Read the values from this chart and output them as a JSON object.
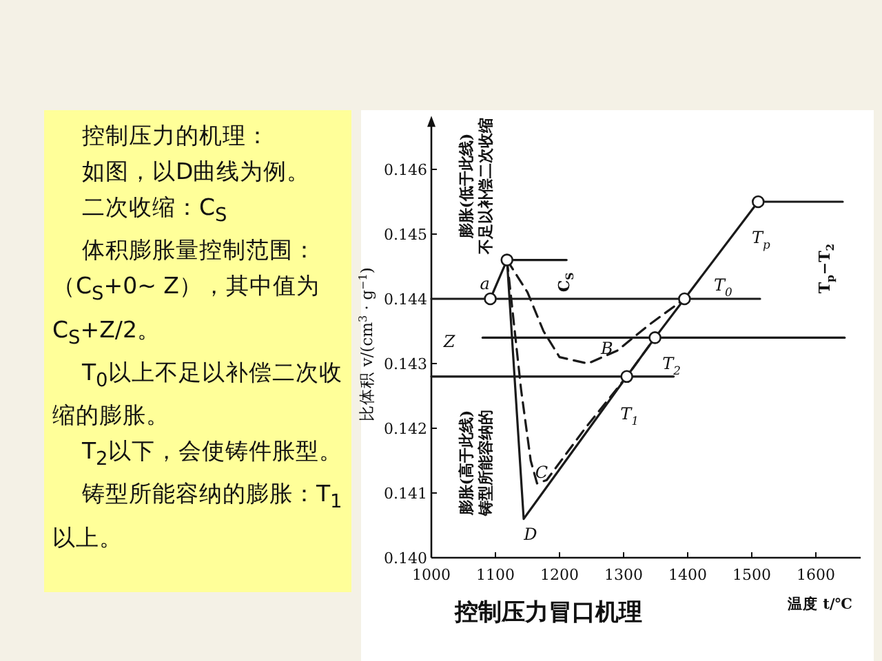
{
  "chart_data": [
    {
      "type": "other",
      "title": "控制压力的机理：",
      "annotations": [
        "如图，以D曲线为例。",
        "二次收缩：C$_{S}$",
        "体积膨胀量控制范围：（C$_{S}$+0~ Z），其中值为C$_{S}$+Z/2。",
        "T$_{0}$以上不足以补偿二次收缩的膨胀。",
        "T$_{2}$以下，会使铸件胀型。",
        "铸型所能容纳的膨胀：T$_{1}$以上。"
      ]
    },
    {
      "type": "line",
      "title": "控制压力冒口机理",
      "xlabel": "温度 t/℃",
      "ylabel": "比体积 v/(cm$^{3}$ · g$^{−1}$)",
      "xlim": [
        1000,
        1670
      ],
      "ylim": [
        0.14,
        0.1467
      ],
      "xticks": [
        1000,
        1100,
        1200,
        1300,
        1400,
        1500,
        1600
      ],
      "yticks": [
        {
          "value": 0.14,
          "label": "0.140"
        },
        0.141,
        0.142,
        0.143,
        0.144,
        0.145,
        0.146
      ],
      "grid": false,
      "series": [
        {
          "color": "#1a1a1a",
          "line_style": "solid",
          "marker": "none",
          "x": [
            1092,
            1118,
            1144,
            1305,
            1349,
            1395,
            1510,
            1642
          ],
          "values": [
            0.144,
            0.1446,
            0.1406,
            0.1428,
            0.1434,
            0.144,
            0.1455,
            0.1455
          ]
        },
        {
          "color": "#1a1a1a",
          "line_style": "dashed",
          "marker": "none",
          "x": [
            1118,
            1140,
            1155,
            1165,
            1180,
            1240,
            1305,
            1349
          ],
          "values": [
            0.1446,
            0.1426,
            0.1415,
            0.14115,
            0.1412,
            0.142,
            0.1428,
            0.1434
          ]
        },
        {
          "color": "#1a1a1a",
          "line_style": "dashed",
          "marker": "none",
          "x": [
            1118,
            1150,
            1175,
            1200,
            1244,
            1290,
            1340,
            1395
          ],
          "values": [
            0.1446,
            0.1441,
            0.1435,
            0.1431,
            0.143,
            0.1432,
            0.1436,
            0.144
          ]
        },
        {
          "color": "#1a1a1a",
          "line_style": "solid",
          "marker": "none",
          "x": [
            1118,
            1211
          ],
          "values": [
            0.1446,
            0.1446
          ]
        },
        {
          "color": "#1a1a1a",
          "line_style": "solid",
          "marker": "none",
          "x": [
            1000,
            1513
          ],
          "values": [
            0.144,
            0.144
          ]
        },
        {
          "color": "#1a1a1a",
          "line_style": "solid",
          "marker": "none",
          "x": [
            1080,
            1645
          ],
          "values": [
            0.1434,
            0.1434
          ]
        },
        {
          "color": "#1a1a1a",
          "line_style": "solid",
          "marker": "none",
          "x": [
            1000,
            1378
          ],
          "values": [
            0.1428,
            0.1428
          ]
        },
        {
          "type": "scatter",
          "color": "#1a1a1a",
          "marker": "circle",
          "x": [
            1092,
            1118,
            1305,
            1349,
            1395,
            1510
          ],
          "values": [
            0.144,
            0.1446,
            0.1428,
            0.1434,
            0.144,
            0.1455
          ]
        }
      ],
      "annotations": [
        "膨胀(低于此线)",
        "不足以补偿二次收缩",
        "膨胀(高于此线)",
        "铸型所能容纳的",
        "C$_{S}$",
        "T$_{p}$−T$_{2}$",
        "Z",
        {
          "text": "a",
          "x": 1092,
          "y": 0.144
        },
        {
          "text": "T$_{p}$",
          "x": 1510,
          "y": 0.1455
        },
        {
          "text": "T$_{0}$",
          "x": 1395,
          "y": 0.144
        },
        {
          "text": "T$_{2}$",
          "x": 1349,
          "y": 0.1434
        },
        {
          "text": "T$_{1}$",
          "x": 1305,
          "y": 0.1428
        },
        {
          "text": "B",
          "x": 1244,
          "y": 0.143
        },
        {
          "text": "C",
          "x": 1172,
          "y": 0.14132
        },
        {
          "text": "D",
          "x": 1144,
          "y": 0.1406
        }
      ]
    }
  ]
}
